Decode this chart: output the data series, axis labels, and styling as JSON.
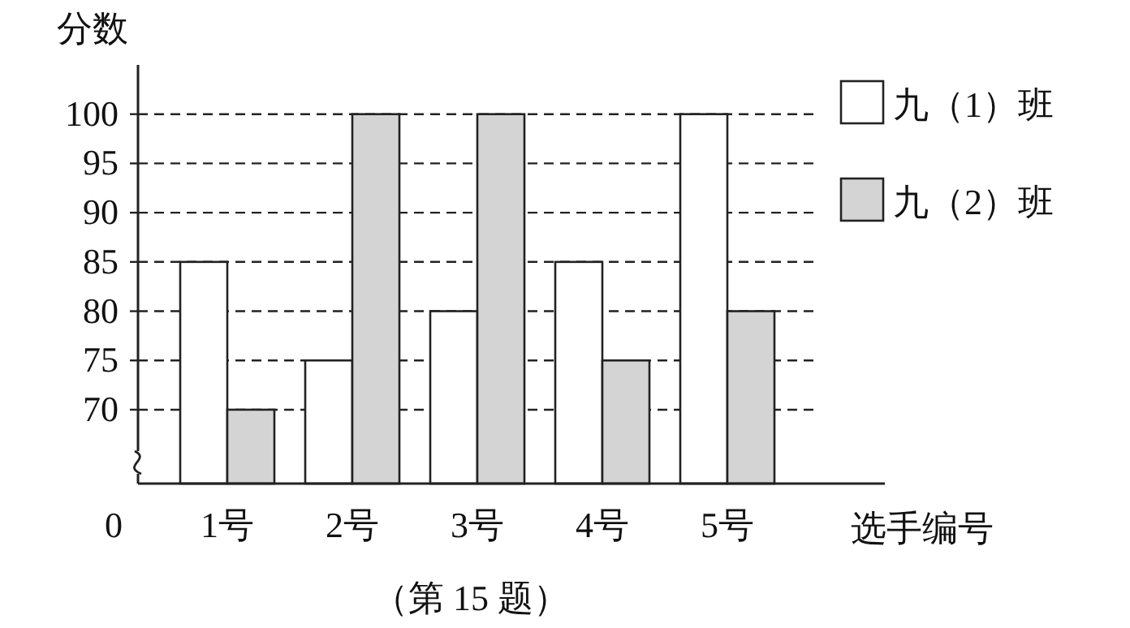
{
  "chart_data": {
    "type": "bar",
    "ylabel": "分数",
    "xlabel": "选手编号",
    "categories": [
      "1号",
      "2号",
      "3号",
      "4号",
      "5号"
    ],
    "series": [
      {
        "name": "九（1）班",
        "color": "#ffffff",
        "values": [
          85,
          75,
          80,
          85,
          100
        ]
      },
      {
        "name": "九（2）班",
        "color": "#d4d4d4",
        "values": [
          70,
          100,
          100,
          75,
          80
        ]
      }
    ],
    "ylim": [
      62.5,
      105
    ],
    "yticks": [
      70,
      75,
      80,
      85,
      90,
      95,
      100
    ],
    "grid": "y",
    "legend": "top right",
    "annotations": [
      "0",
      "（第 15 题）"
    ]
  }
}
